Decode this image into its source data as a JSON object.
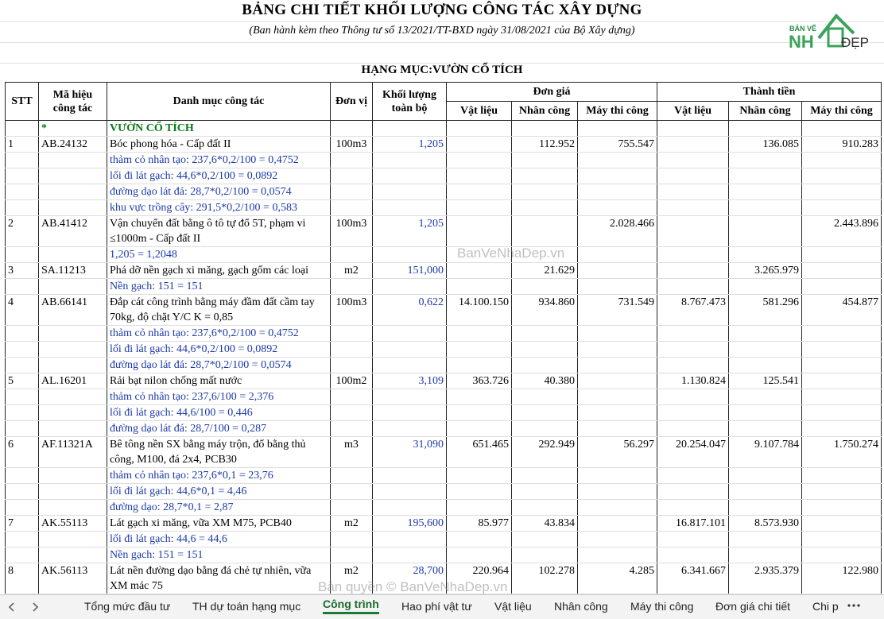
{
  "header": {
    "title": "BẢNG CHI TIẾT KHỐI LƯỢNG CÔNG TÁC XÂY DỰNG",
    "subtitle": "(Ban hành kèm theo Thông tư số 13/2021/TT-BXD ngày 31/08/2021 của Bộ Xây dựng)",
    "section": "HẠNG MỤC:VƯỜN CỔ TÍCH"
  },
  "logo": {
    "top": "BẢN VẼ",
    "nh": "NH",
    "dep": "ĐẸP"
  },
  "table": {
    "headers": {
      "stt": "STT",
      "code": "Mã hiệu công tác",
      "name": "Danh mục công tác",
      "unit": "Đơn vị",
      "qty": "Khối lượng toàn bộ",
      "unit_price": {
        "title": "Đơn giá",
        "columns": [
          "Vật liệu",
          "Nhân công",
          "Máy thi công"
        ]
      },
      "total": {
        "title": "Thành tiền",
        "columns": [
          "Vật liệu",
          "Nhân công",
          "Máy thi công"
        ]
      }
    },
    "section": {
      "marker": "*",
      "name": "VƯỜN CỔ TÍCH"
    },
    "items": [
      {
        "cells": [
          "1",
          "AB.24132",
          "Bóc phong hóa - Cấp đất II",
          "100m3",
          "1,205",
          null,
          "112.952",
          "755.547",
          null,
          "136.085",
          "910.283"
        ],
        "details": [
          "thảm cỏ nhân tạo: 237,6*0,2/100 = 0,4752",
          "lối đi lát gạch: 44,6*0,2/100 = 0,0892",
          "đường dạo lát đá: 28,7*0,2/100 = 0,0574",
          "khu vực trồng cây: 291,5*0,2/100 = 0,583"
        ]
      },
      {
        "cells": [
          "2",
          "AB.41412",
          "Vận chuyển đất bằng ô tô tự đổ 5T, phạm vi ≤1000m - Cấp đất II",
          "100m3",
          "1,205",
          null,
          null,
          "2.028.466",
          null,
          null,
          "2.443.896"
        ],
        "details": [
          "1,205 = 1,2048"
        ]
      },
      {
        "cells": [
          "3",
          "SA.11213",
          "Phá dỡ nền gạch xi măng, gạch gốm các loại",
          "m2",
          "151,000",
          null,
          "21.629",
          null,
          null,
          "3.265.979",
          null
        ],
        "details": [
          "Nền gạch: 151 = 151"
        ]
      },
      {
        "cells": [
          "4",
          "AB.66141",
          "Đắp cát công trình bằng máy đầm đất cầm tay 70kg, độ chặt Y/C K = 0,85",
          "100m3",
          "0,622",
          "14.100.150",
          "934.860",
          "731.549",
          "8.767.473",
          "581.296",
          "454.877"
        ],
        "details": [
          "thảm cỏ nhân tạo: 237,6*0,2/100 = 0,4752",
          "lối đi lát gạch: 44,6*0,2/100 = 0,0892",
          "đường dạo lát đá: 28,7*0,2/100 = 0,0574"
        ]
      },
      {
        "cells": [
          "5",
          "AL.16201",
          "Rải bạt nilon chống mất nước",
          "100m2",
          "3,109",
          "363.726",
          "40.380",
          null,
          "1.130.824",
          "125.541",
          null
        ],
        "details": [
          "thảm cỏ nhân tạo: 237,6/100 = 2,376",
          "lối đi lát gạch: 44,6/100 = 0,446",
          "đường dạo lát đá: 28,7/100 = 0,287"
        ]
      },
      {
        "cells": [
          "6",
          "AF.11321A",
          "Bê tông nền SX bằng máy trộn, đổ bằng thủ công, M100, đá 2x4, PCB30",
          "m3",
          "31,090",
          "651.465",
          "292.949",
          "56.297",
          "20.254.047",
          "9.107.784",
          "1.750.274"
        ],
        "details": [
          "thảm cỏ nhân tạo: 237,6*0,1 = 23,76",
          "lối đi lát gạch: 44,6*0,1 = 4,46",
          "đường dạo: 28,7*0,1 = 2,87"
        ]
      },
      {
        "cells": [
          "7",
          "AK.55113",
          "Lát gạch xi măng, vữa XM M75, PCB40",
          "m2",
          "195,600",
          "85.977",
          "43.834",
          null,
          "16.817.101",
          "8.573.930",
          null
        ],
        "details": [
          "lối đi lát gạch: 44,6 = 44,6",
          "Nền gạch: 151 = 151"
        ]
      },
      {
        "cells": [
          "8",
          "AK.56113",
          "Lát nền đường dạo bằng đá chẻ tự nhiên, vữa XM mác 75",
          "m2",
          "28,700",
          "220.964",
          "102.278",
          "4.285",
          "6.341.667",
          "2.935.379",
          "122.980"
        ],
        "details": []
      }
    ]
  },
  "watermarks": [
    "BanVeNhaDep.vn",
    "Bản quyền © BanVeNhaDep.vn"
  ],
  "tabs": [
    "Tổng mức đầu tư",
    "TH dự toán hạng mục",
    "Công trình",
    "Hao phí vật tư",
    "Vật liệu",
    "Nhân công",
    "Máy thi công",
    "Đơn giá chi tiết",
    "Chi phí"
  ],
  "active_tab": 2
}
